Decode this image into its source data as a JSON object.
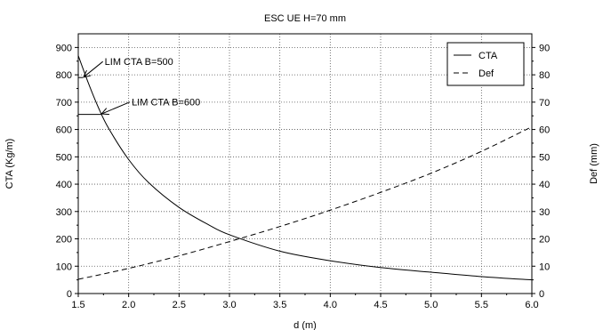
{
  "chart_data": {
    "type": "line",
    "title": "ESC UE H=70 mm",
    "xlabel": "d (m)",
    "ylabel": "CTA (Kg/m)",
    "y2label": "Def (mm)",
    "xlim": [
      1.5,
      6.0
    ],
    "ylim": [
      0,
      950
    ],
    "y2lim": [
      0,
      95
    ],
    "xticks": [
      "1.5",
      "2.0",
      "2.5",
      "3.0",
      "3.5",
      "4.0",
      "4.5",
      "5.0",
      "5.5",
      "6.0"
    ],
    "yticks": [
      "0",
      "100",
      "200",
      "300",
      "400",
      "500",
      "600",
      "700",
      "800",
      "900"
    ],
    "y2ticks": [
      "0",
      "10",
      "20",
      "30",
      "40",
      "50",
      "60",
      "70",
      "80",
      "90"
    ],
    "grid": true,
    "legend_position": "top-right",
    "series": [
      {
        "name": "CTA",
        "axis": "left",
        "style": "solid",
        "x": [
          1.5,
          1.6,
          1.7,
          1.8,
          2.0,
          2.2,
          2.5,
          2.8,
          3.0,
          3.5,
          4.0,
          4.5,
          5.0,
          5.5,
          6.0
        ],
        "y": [
          870,
          770,
          680,
          605,
          490,
          405,
          315,
          250,
          215,
          155,
          120,
          95,
          78,
          62,
          50
        ]
      },
      {
        "name": "Def",
        "axis": "right",
        "style": "dashed",
        "x": [
          1.5,
          2.0,
          2.5,
          3.0,
          3.5,
          4.0,
          4.5,
          5.0,
          5.5,
          6.0
        ],
        "y": [
          5.2,
          9.2,
          13.8,
          19.0,
          24.5,
          30.5,
          37.0,
          44.0,
          52.0,
          61.0
        ]
      }
    ],
    "annotations": [
      {
        "text": "LIM CTA B=500",
        "x_end": 1.55,
        "y": 790
      },
      {
        "text": "LIM CTA B=600",
        "x_end": 1.73,
        "y": 655
      }
    ]
  }
}
